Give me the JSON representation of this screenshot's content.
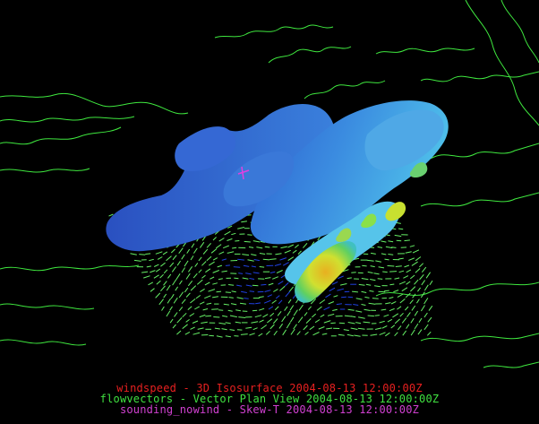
{
  "colors": {
    "background": "#000000",
    "coastline": "#3fe83f",
    "vectors": "#66f066",
    "windspeed_legend": "#e82020",
    "flowvectors_legend": "#40e040",
    "sounding_legend": "#d040d0",
    "isosurface_low": "#2a5fd0",
    "isosurface_high": "#e0e030"
  },
  "legend": {
    "windspeed": "windspeed - 3D Isosurface 2004-08-13 12:00:00Z",
    "flowvectors": "flowvectors - Vector Plan View 2004-08-13 12:00:00Z",
    "sounding": "sounding_nowind - Skew-T 2004-08-13 12:00:00Z"
  }
}
